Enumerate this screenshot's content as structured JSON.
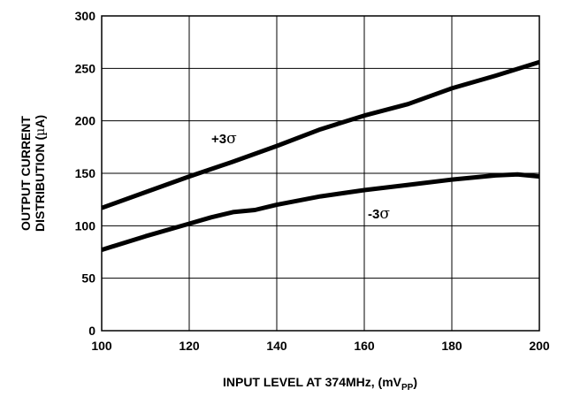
{
  "chart_data": {
    "type": "line",
    "xlabel_main": "INPUT LEVEL AT 374MHz, (mV",
    "xlabel_sub": "PP",
    "xlabel_close": ")",
    "ylabel_line1": "OUTPUT CURRENT",
    "ylabel_line2_main": "DISTRIBUTION (",
    "ylabel_line2_greek": "µ",
    "ylabel_line2_end": "A)",
    "xlim": [
      100,
      200
    ],
    "ylim": [
      0,
      300
    ],
    "xticks": [
      "100",
      "120",
      "140",
      "160",
      "180",
      "200"
    ],
    "yticks": [
      "0",
      "50",
      "100",
      "150",
      "200",
      "250",
      "300"
    ],
    "grid": true,
    "series": [
      {
        "name": "+3σ",
        "name_prefix": "+3",
        "name_sigma": "σ",
        "x": [
          100,
          110,
          120,
          130,
          140,
          150,
          160,
          170,
          180,
          190,
          200
        ],
        "y": [
          117,
          132,
          147,
          161,
          176,
          192,
          205,
          216,
          231,
          243,
          256
        ]
      },
      {
        "name": "-3σ",
        "name_prefix": "-3",
        "name_sigma": "σ",
        "x": [
          100,
          110,
          120,
          125,
          130,
          135,
          140,
          150,
          160,
          170,
          180,
          190,
          195,
          200
        ],
        "y": [
          77,
          90,
          102,
          108,
          113,
          115,
          120,
          128,
          134,
          139,
          144,
          148,
          149,
          147
        ]
      }
    ]
  }
}
